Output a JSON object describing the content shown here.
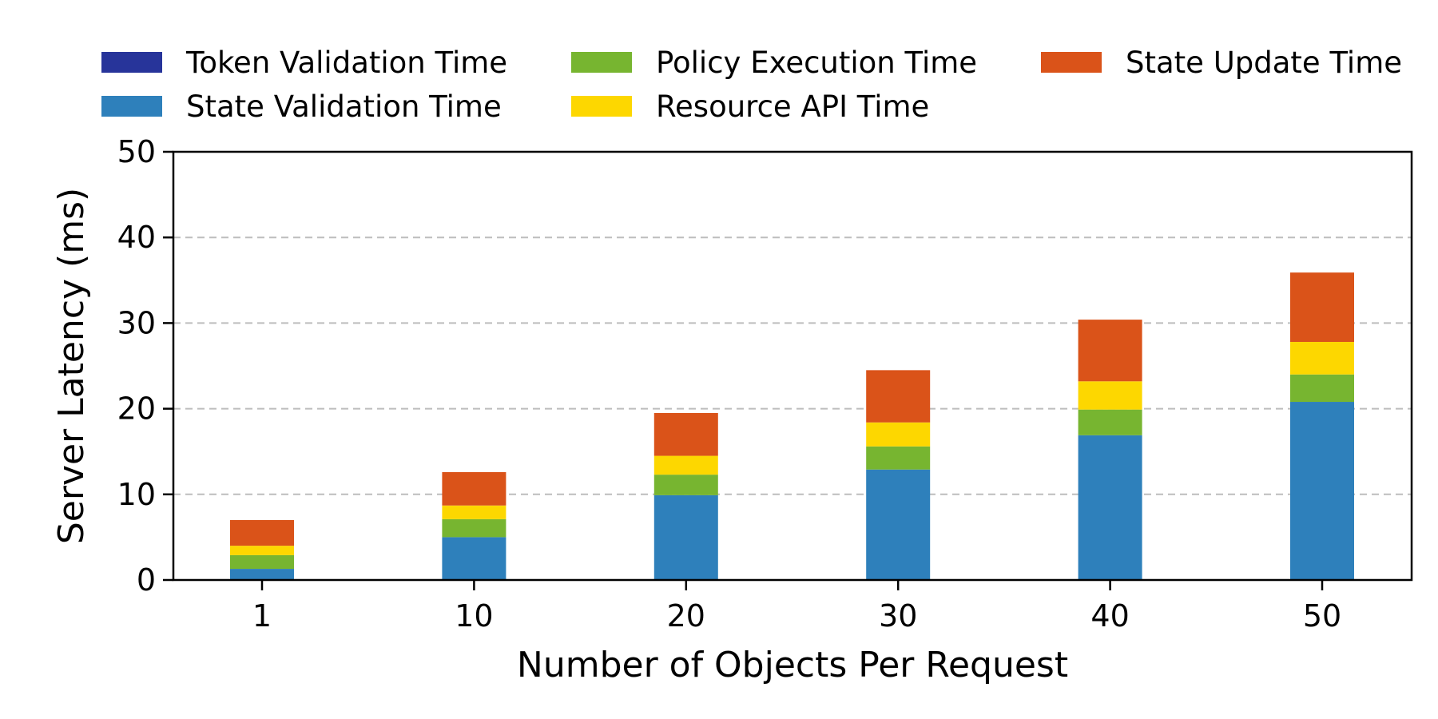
{
  "chart_data": {
    "type": "bar",
    "stacked": true,
    "title": "",
    "xlabel": "Number of Objects Per Request",
    "ylabel": "Server Latency (ms)",
    "ylim": [
      0,
      50
    ],
    "yticks": [
      "0",
      "10",
      "20",
      "30",
      "40",
      "50"
    ],
    "categories": [
      "1",
      "10",
      "20",
      "30",
      "40",
      "50"
    ],
    "grid": "horizontal dashed",
    "legend_position": "top",
    "series": [
      {
        "name": "Token Validation Time",
        "color": "#27349a",
        "values": [
          0.0,
          0.0,
          0.0,
          0.0,
          0.0,
          0.0
        ]
      },
      {
        "name": "State Validation Time",
        "color": "#2e80bb",
        "values": [
          1.3,
          5.0,
          9.9,
          12.9,
          16.9,
          20.8
        ]
      },
      {
        "name": "Policy Execution Time",
        "color": "#77b530",
        "values": [
          1.6,
          2.1,
          2.4,
          2.7,
          3.0,
          3.2
        ]
      },
      {
        "name": "Resource API Time",
        "color": "#fdd700",
        "values": [
          1.1,
          1.6,
          2.2,
          2.8,
          3.3,
          3.8
        ]
      },
      {
        "name": "State Update Time",
        "color": "#da5319",
        "values": [
          3.0,
          3.9,
          5.0,
          6.1,
          7.2,
          8.1
        ]
      }
    ]
  }
}
